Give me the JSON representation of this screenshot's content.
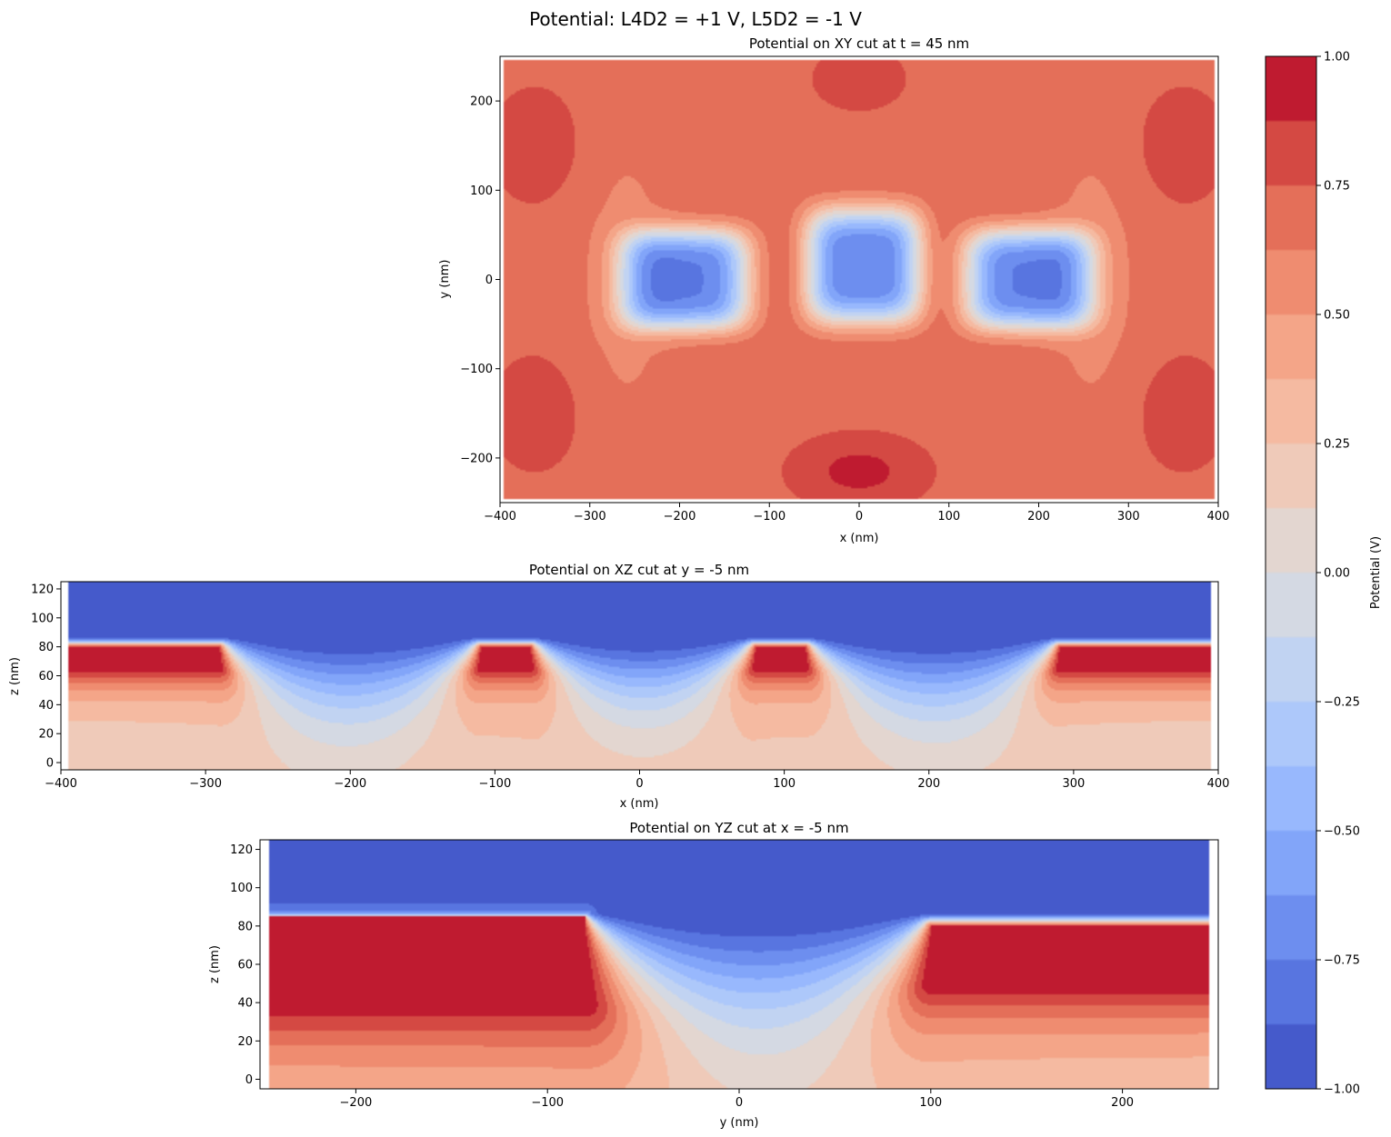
{
  "suptitle": "Potential: L4D2 = +1 V, L5D2 = -1 V",
  "colorbar": {
    "label": "Potential (V)",
    "range": [
      -1.0,
      1.0
    ],
    "ticks": [
      -1.0,
      -0.75,
      -0.5,
      -0.25,
      0.0,
      0.25,
      0.5,
      0.75,
      1.0
    ],
    "tick_labels": [
      "−1.00",
      "−0.75",
      "−0.50",
      "−0.25",
      "0.00",
      "0.25",
      "0.50",
      "0.75",
      "1.00"
    ],
    "colormap": "coolwarm",
    "color_min": "#3b4cc0",
    "color_mid": "#dddcdc",
    "color_max": "#b40426"
  },
  "chart_data": [
    {
      "type": "heatmap",
      "title": "Potential on XY cut at t = 45 nm",
      "xlabel": "x (nm)",
      "ylabel": "y (nm)",
      "xlim": [
        -400,
        400
      ],
      "ylim": [
        -250,
        250
      ],
      "xticks": [
        -400,
        -300,
        -200,
        -100,
        0,
        100,
        200,
        300,
        400
      ],
      "xtick_labels": [
        "−400",
        "−300",
        "−200",
        "−100",
        "0",
        "100",
        "200",
        "300",
        "400"
      ],
      "yticks": [
        -200,
        -100,
        0,
        100,
        200
      ],
      "ytick_labels": [
        "−200",
        "−100",
        "0",
        "100",
        "200"
      ],
      "data_extent": {
        "x": [
          -395,
          395
        ],
        "y": [
          -245,
          245
        ]
      },
      "features": [
        {
          "kind": "well",
          "x": -195,
          "y": 0,
          "min_value": -0.5
        },
        {
          "kind": "well",
          "x": 5,
          "y": 15,
          "min_value": -0.5
        },
        {
          "kind": "well",
          "x": 190,
          "y": 0,
          "min_value": -0.5
        },
        {
          "kind": "peak",
          "x": 0,
          "y": -210,
          "max_value": 1.0
        },
        {
          "kind": "peak",
          "x": -80,
          "y": -210,
          "max_value": 1.0
        },
        {
          "kind": "peak",
          "x": 90,
          "y": -210,
          "max_value": 1.0
        },
        {
          "kind": "peak",
          "x": -10,
          "y": 225,
          "max_value": 0.9
        },
        {
          "kind": "peak",
          "x": -360,
          "y": 150,
          "max_value": 0.9
        },
        {
          "kind": "peak",
          "x": 360,
          "y": 150,
          "max_value": 0.9
        }
      ]
    },
    {
      "type": "heatmap",
      "title": "Potential on XZ cut at y = -5 nm",
      "xlabel": "x (nm)",
      "ylabel": "z (nm)",
      "xlim": [
        -400,
        400
      ],
      "ylim": [
        -5,
        125
      ],
      "xticks": [
        -400,
        -300,
        -200,
        -100,
        0,
        100,
        200,
        300,
        400
      ],
      "xtick_labels": [
        "−400",
        "−300",
        "−200",
        "−100",
        "0",
        "100",
        "200",
        "300",
        "400"
      ],
      "yticks": [
        0,
        20,
        40,
        60,
        80,
        100,
        120
      ],
      "ytick_labels": [
        "0",
        "20",
        "40",
        "60",
        "80",
        "100",
        "120"
      ],
      "data_extent": {
        "x": [
          -395,
          395
        ],
        "z": [
          -5,
          125
        ]
      },
      "gates": [
        {
          "name": "",
          "x": [
            -400,
            -290
          ],
          "z": [
            65,
            80
          ],
          "value": 1.0
        },
        {
          "name": "",
          "x": [
            -110,
            -75
          ],
          "z": [
            65,
            80
          ],
          "value": 1.0
        },
        {
          "name": "",
          "x": [
            80,
            115
          ],
          "z": [
            65,
            80
          ],
          "value": 1.0
        },
        {
          "name": "",
          "x": [
            290,
            400
          ],
          "z": [
            65,
            80
          ],
          "value": 1.0
        }
      ]
    },
    {
      "type": "heatmap",
      "title": "Potential on YZ cut at x = -5 nm",
      "xlabel": "y (nm)",
      "ylabel": "z (nm)",
      "xlim": [
        -250,
        250
      ],
      "ylim": [
        -5,
        125
      ],
      "xticks": [
        -200,
        -100,
        0,
        100,
        200
      ],
      "xtick_labels": [
        "−200",
        "−100",
        "0",
        "100",
        "200"
      ],
      "yticks": [
        0,
        20,
        40,
        60,
        80,
        100,
        120
      ],
      "ytick_labels": [
        "0",
        "20",
        "40",
        "60",
        "80",
        "100",
        "120"
      ],
      "data_extent": {
        "y": [
          -245,
          245
        ],
        "z": [
          -5,
          125
        ]
      },
      "gates": [
        {
          "name": "",
          "y": [
            -250,
            -80
          ],
          "z": [
            40,
            85
          ],
          "value": 1.0
        },
        {
          "name": "",
          "y": [
            100,
            250
          ],
          "z": [
            50,
            80
          ],
          "value": 1.0
        }
      ]
    }
  ]
}
